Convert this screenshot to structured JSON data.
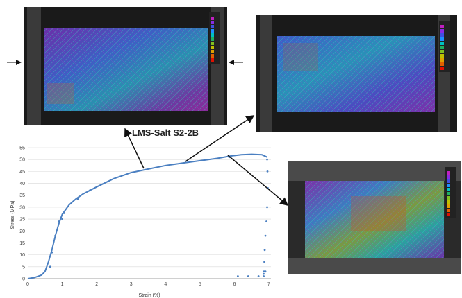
{
  "sample_label": "LMS-Salt S2-2B",
  "chart_data": {
    "type": "scatter",
    "title": "",
    "xlabel": "Strain (%)",
    "ylabel": "Stress (MPa)",
    "xlim": [
      0,
      7
    ],
    "ylim": [
      0,
      55
    ],
    "xticks": [
      0,
      1,
      2,
      3,
      4,
      5,
      6,
      7
    ],
    "yticks": [
      0,
      5,
      10,
      15,
      20,
      25,
      30,
      35,
      40,
      45,
      50,
      55
    ],
    "grid": "horizontal",
    "series": [
      {
        "color": "#4a7fc1",
        "curve_x": [
          0,
          0.2,
          0.4,
          0.5,
          0.6,
          0.7,
          0.8,
          0.9,
          1.0,
          1.2,
          1.4,
          1.6,
          2.0,
          2.5,
          3.0,
          3.5,
          4.0,
          4.5,
          5.0,
          5.5,
          5.9,
          6.2,
          6.5,
          6.8,
          6.95
        ],
        "curve_y": [
          0,
          0.5,
          1.5,
          3,
          7,
          12,
          18,
          23,
          27,
          31,
          33.5,
          35.5,
          38.5,
          42,
          44.5,
          46,
          47.5,
          48.5,
          49.5,
          50.5,
          51.5,
          52,
          52.2,
          52,
          51
        ],
        "drop_x": [
          6.95,
          6.96,
          6.97,
          6.95,
          6.93,
          6.9,
          6.88,
          6.87,
          6.86,
          6.85
        ],
        "drop_y": [
          50,
          45,
          38,
          30,
          24,
          18,
          12,
          7,
          3,
          1
        ],
        "scatter_x": [
          0.65,
          0.7,
          0.8,
          0.9,
          1.0,
          1.05,
          1.45,
          1.8,
          5.85,
          6.1,
          6.4,
          6.7,
          6.85,
          6.9
        ],
        "scatter_y": [
          5,
          11,
          18,
          24,
          25,
          27.5,
          33.5,
          37,
          51,
          1,
          1,
          1,
          2,
          3
        ]
      }
    ],
    "colorbar_colors": [
      "#c020c0",
      "#8a2be2",
      "#4050e0",
      "#1e90ff",
      "#00c0c0",
      "#20b060",
      "#80c020",
      "#c0c000",
      "#e0a000",
      "#e06000",
      "#e01000"
    ]
  }
}
